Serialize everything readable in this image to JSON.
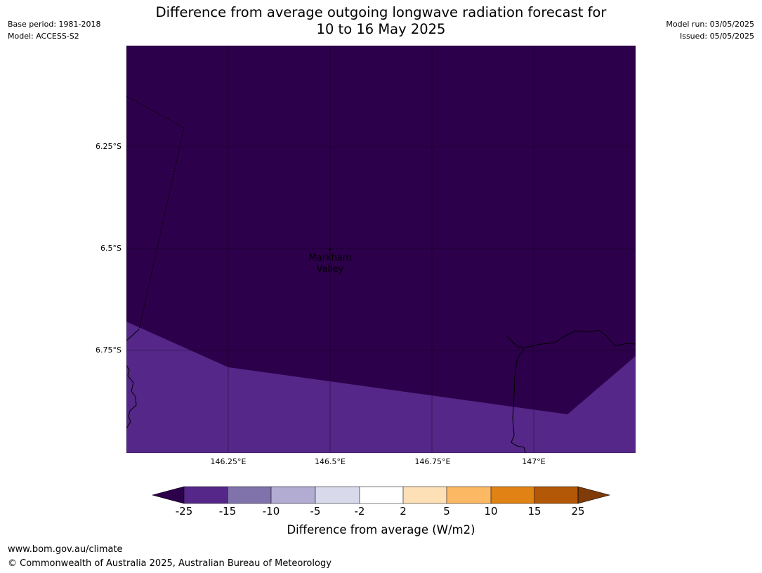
{
  "header": {
    "title_line1": "Difference from average outgoing longwave radiation forecast for",
    "title_line2": "10 to 16 May 2025",
    "base_period": "Base period: 1981-2018",
    "model": "Model: ACCESS-S2",
    "model_run": "Model run: 03/05/2025",
    "issued": "Issued: 05/05/2025"
  },
  "map": {
    "latitude_labels": [
      "6.25°S",
      "6.5°S",
      "6.75°S"
    ],
    "longitude_labels": [
      "146.25°E",
      "146.5°E",
      "146.75°E",
      "147°E"
    ],
    "place_label_line1": "Markham",
    "place_label_line2": "Valley",
    "region_colors": {
      "below_minus_25": "#2d004b",
      "minus_25_to_minus_15": "#542788"
    }
  },
  "colorbar": {
    "label": "Difference from average (W/m2)",
    "ticks": [
      "-25",
      "-15",
      "-10",
      "-5",
      "-2",
      "2",
      "5",
      "10",
      "15",
      "25"
    ],
    "colors": [
      "#2d004b",
      "#542788",
      "#8073ac",
      "#b2abd2",
      "#d8daeb",
      "#ffffff",
      "#fee0b6",
      "#fdb863",
      "#e08214",
      "#b35806",
      "#7f3b08"
    ]
  },
  "footer": {
    "url": "www.bom.gov.au/climate",
    "copyright": "© Commonwealth of Australia 2025, Australian Bureau of Meteorology"
  }
}
